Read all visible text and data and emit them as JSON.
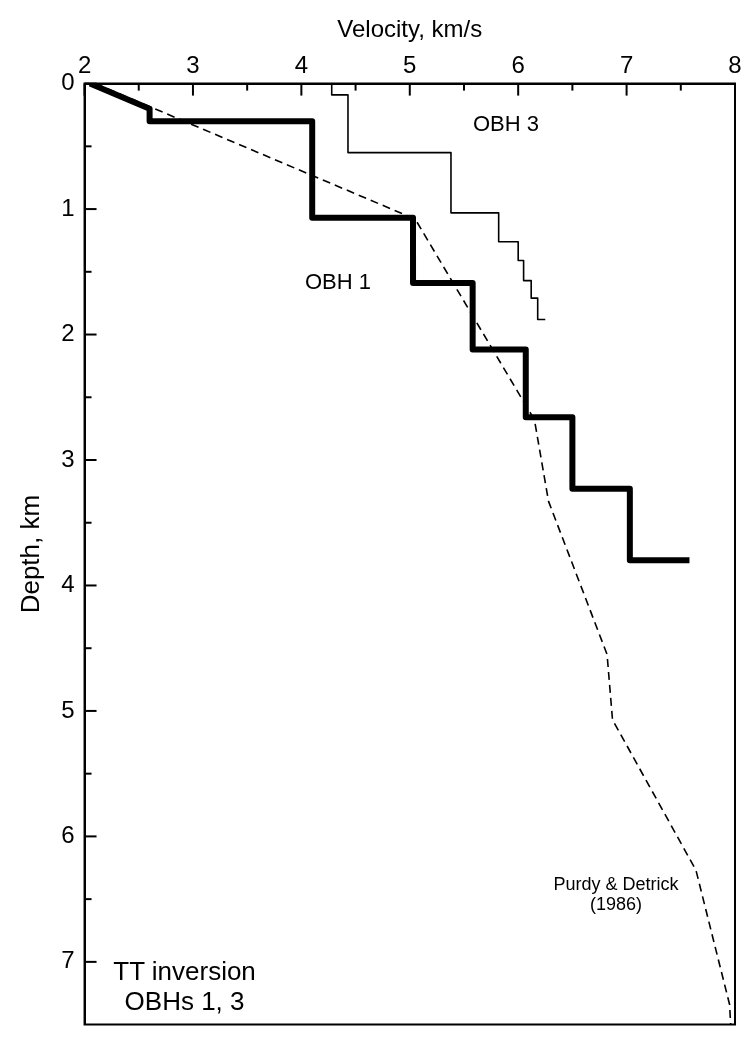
{
  "chart_data": {
    "type": "line",
    "xlabel": "Velocity, km/s",
    "ylabel": "Depth, km",
    "xlim": [
      2,
      8
    ],
    "ylim": [
      7.5,
      0
    ],
    "xticks": [
      2,
      {
        "value": 2.5,
        "label": null
      },
      3,
      {
        "value": 3.5,
        "label": null
      },
      4,
      {
        "value": 4.5,
        "label": null
      },
      5,
      {
        "value": 5.5,
        "label": null
      },
      6,
      {
        "value": 6.5,
        "label": null
      },
      7,
      {
        "value": 7.5,
        "label": null
      },
      8
    ],
    "yticks": [
      0,
      {
        "value": 0.5,
        "label": null
      },
      1,
      {
        "value": 1.5,
        "label": null
      },
      2,
      {
        "value": 2.5,
        "label": null
      },
      3,
      {
        "value": 3.5,
        "label": null
      },
      4,
      {
        "value": 4.5,
        "label": null
      },
      5,
      {
        "value": 5.5,
        "label": null
      },
      6,
      {
        "value": 6.5,
        "label": null
      },
      7
    ],
    "grid": false,
    "legend": false,
    "marker": "none",
    "series": [
      {
        "name": "OBH 1",
        "color": "#000000",
        "line_style": "solid",
        "x": [
          2.05,
          2.6,
          2.6,
          4.1,
          4.1,
          5.03,
          5.03,
          5.58,
          5.58,
          6.07,
          6.07,
          6.5,
          6.5,
          7.03,
          7.03,
          7.58
        ],
        "values": [
          0,
          0.2,
          0.3,
          0.3,
          1.07,
          1.07,
          1.59,
          1.59,
          2.12,
          2.12,
          2.66,
          2.66,
          3.23,
          3.23,
          3.8,
          3.8
        ]
      },
      {
        "name": "OBH 3",
        "color": "#000000",
        "line_style": "solid",
        "x": [
          4.28,
          4.28,
          4.43,
          4.43,
          5.38,
          5.38,
          5.82,
          5.82,
          6.0,
          6.0,
          6.05,
          6.05,
          6.12,
          6.12,
          6.18,
          6.18,
          6.25
        ],
        "values": [
          0,
          0.09,
          0.09,
          0.55,
          0.55,
          1.03,
          1.03,
          1.26,
          1.26,
          1.41,
          1.41,
          1.57,
          1.57,
          1.71,
          1.71,
          1.88,
          1.88
        ]
      },
      {
        "name": "Purdy & Detrick (1986)",
        "color": "#000000",
        "line_style": "dashed",
        "x": [
          2.1,
          5.05,
          6.15,
          6.28,
          6.82,
          6.87,
          7.64,
          7.95,
          7.96
        ],
        "values": [
          0,
          1.08,
          2.68,
          3.33,
          4.55,
          5.07,
          6.27,
          7.34,
          7.5
        ]
      }
    ],
    "annotations": [
      "TT inversion OBHs 1, 3"
    ]
  }
}
